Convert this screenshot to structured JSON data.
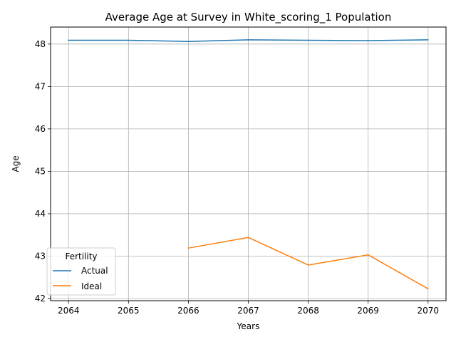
{
  "chart_data": {
    "type": "line",
    "title": "Average Age at Survey in White_scoring_1 Population",
    "xlabel": "Years",
    "ylabel": "Age",
    "x": [
      2064,
      2065,
      2066,
      2067,
      2068,
      2069,
      2070
    ],
    "xticks": [
      "2064",
      "2065",
      "2066",
      "2067",
      "2068",
      "2069",
      "2070"
    ],
    "yticks": [
      "42",
      "43",
      "44",
      "45",
      "46",
      "47",
      "48"
    ],
    "xlim": [
      2063.7,
      2070.3
    ],
    "ylim": [
      41.95,
      48.4
    ],
    "grid": true,
    "legend": {
      "title": "Fertility",
      "placement": "lower-left"
    },
    "series": [
      {
        "name": "Actual",
        "color": "#1f77b4",
        "values": [
          48.09,
          48.09,
          48.06,
          48.1,
          48.09,
          48.08,
          48.1
        ]
      },
      {
        "name": "Ideal",
        "color": "#ff7f0e",
        "values": [
          null,
          null,
          43.19,
          43.44,
          42.79,
          43.03,
          42.23
        ]
      }
    ]
  }
}
